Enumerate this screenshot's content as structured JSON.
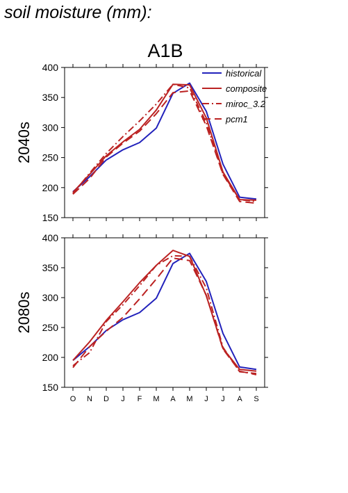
{
  "page": {
    "heading": "soil moisture (mm):",
    "scenario": "A1B"
  },
  "colors": {
    "historical": "#2222bb",
    "projection": "#bb2222",
    "axis": "#000000",
    "background": "#ffffff"
  },
  "chart_data": [
    {
      "type": "line",
      "title": "A1B",
      "panel_label": "2040s",
      "categories": [
        "O",
        "N",
        "D",
        "J",
        "F",
        "M",
        "A",
        "M",
        "J",
        "J",
        "A",
        "S"
      ],
      "ylim": [
        150,
        400
      ],
      "yticks": [
        150,
        200,
        250,
        300,
        350,
        400
      ],
      "show_x_tick_labels": false,
      "grid": false,
      "legend": "top-right",
      "series": [
        {
          "name": "historical",
          "style": "solid",
          "color": "#2222bb",
          "values": [
            193,
            218,
            246,
            263,
            275,
            299,
            357,
            374,
            327,
            239,
            184,
            181
          ]
        },
        {
          "name": "composite",
          "style": "solid",
          "color": "#bb2222",
          "values": [
            192,
            222,
            253,
            276,
            297,
            329,
            372,
            371,
            316,
            226,
            180,
            179
          ]
        },
        {
          "name": "miroc_3.2",
          "style": "dashdot",
          "color": "#bb2222",
          "values": [
            190,
            224,
            257,
            285,
            311,
            339,
            372,
            366,
            308,
            223,
            180,
            177
          ]
        },
        {
          "name": "pcm1",
          "style": "dashed",
          "color": "#bb2222",
          "values": [
            189,
            215,
            251,
            274,
            294,
            323,
            358,
            361,
            303,
            222,
            177,
            174
          ]
        }
      ]
    },
    {
      "type": "line",
      "title": "",
      "panel_label": "2080s",
      "categories": [
        "O",
        "N",
        "D",
        "J",
        "F",
        "M",
        "A",
        "M",
        "J",
        "J",
        "A",
        "S"
      ],
      "ylim": [
        150,
        400
      ],
      "yticks": [
        150,
        200,
        250,
        300,
        350,
        400
      ],
      "show_x_tick_labels": true,
      "grid": false,
      "series": [
        {
          "name": "historical",
          "style": "solid",
          "color": "#2222bb",
          "values": [
            195,
            218,
            245,
            263,
            275,
            299,
            357,
            374,
            327,
            240,
            184,
            180
          ]
        },
        {
          "name": "composite",
          "style": "solid",
          "color": "#bb2222",
          "values": [
            195,
            226,
            262,
            293,
            325,
            354,
            379,
            369,
            303,
            215,
            180,
            177
          ]
        },
        {
          "name": "miroc_3.2",
          "style": "dashdot",
          "color": "#bb2222",
          "values": [
            186,
            208,
            260,
            288,
            320,
            354,
            370,
            369,
            316,
            217,
            176,
            173
          ]
        },
        {
          "name": "pcm1",
          "style": "dashed",
          "color": "#bb2222",
          "values": [
            183,
            218,
            244,
            267,
            298,
            331,
            366,
            362,
            304,
            214,
            177,
            171
          ]
        }
      ]
    }
  ]
}
